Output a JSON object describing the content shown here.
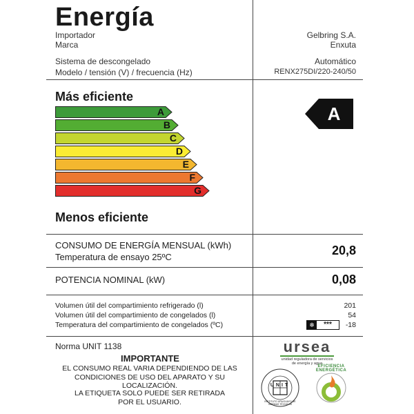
{
  "header": {
    "title": "Energía",
    "importer_label": "Importador",
    "brand_label": "Marca",
    "importer_value": "Gelbring S.A.",
    "brand_value": "Enxuta",
    "defrost_label": "Sistema de descongelado",
    "defrost_value": "Automático",
    "model_label": "Modelo / tensión (V) / frecuencia (Hz)",
    "model_value": "RENX275DI/220-240/50"
  },
  "scale": {
    "top_label": "Más eficiente",
    "bottom_label": "Menos eficiente",
    "classes": [
      {
        "letter": "A",
        "color": "#3d9b3a"
      },
      {
        "letter": "B",
        "color": "#53ad33"
      },
      {
        "letter": "C",
        "color": "#c3d530"
      },
      {
        "letter": "D",
        "color": "#fbec33"
      },
      {
        "letter": "E",
        "color": "#f3b72f"
      },
      {
        "letter": "F",
        "color": "#ec7830"
      },
      {
        "letter": "G",
        "color": "#e22e2c"
      }
    ],
    "rating": "A"
  },
  "consumption": {
    "label": "CONSUMO DE ENERGÍA MENSUAL (kWh)",
    "temp_label": "Temperatura de ensayo 25ºC",
    "value": "20,8"
  },
  "power": {
    "label": "POTENCIA NOMINAL (kW)",
    "value": "0,08"
  },
  "volumes": {
    "fridge_label": "Volumen útil del compartimiento refrigerado (l)",
    "fridge_value": "201",
    "freezer_label": "Volumen útil del compartimiento de congelados (l)",
    "freezer_value": "54",
    "freezer_temp_label": "Temperatura del compartimiento de congelados (ºC)",
    "freezer_temp_value": "-18",
    "stars": "***"
  },
  "footer": {
    "norma": "Norma UNIT 1138",
    "important_title": "IMPORTANTE",
    "important_line1": "EL CONSUMO REAL VARIA DEPENDIENDO DE LAS",
    "important_line2": "CONDICIONES DE USO DEL APARATO Y SU LOCALIZACIÓN.",
    "removal_line1": "LA ETIQUETA SOLO PUEDE SER RETIRADA",
    "removal_line2": "POR EL USUARIO.",
    "ursea_logo": "ursea",
    "ursea_sub1": "unidad reguladora de servicios",
    "ursea_sub2": "de energía y agua",
    "unit_seal_text": "INSTITUTO URUGUAYO DE NORMAS TÉCNICAS",
    "unit_seal_center": "UNIT",
    "efficiency_seal_text": "EFICIENCIA ENERGÉTICA"
  }
}
